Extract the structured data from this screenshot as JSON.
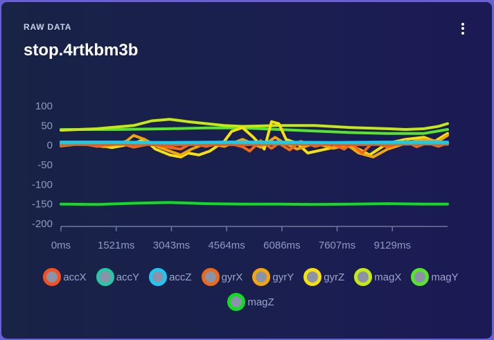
{
  "card": {
    "label": "RAW DATA",
    "title": "stop.4rtkbm3b",
    "menu_icon": "vertical-dots-icon"
  },
  "chart_data": {
    "type": "line",
    "ylim": [
      -200,
      100
    ],
    "xlim": [
      0,
      10650
    ],
    "yticks": [
      100,
      50,
      0,
      -50,
      -100,
      -150,
      -200
    ],
    "xticks": [
      0,
      1521,
      3043,
      4564,
      6086,
      7607,
      9129
    ],
    "xtick_labels": [
      "0ms",
      "1521ms",
      "3043ms",
      "4564ms",
      "6086ms",
      "7607ms",
      "9129ms"
    ],
    "grid": false,
    "legend_placement": "bottom",
    "series": [
      {
        "name": "accX",
        "color": "#f4511e",
        "x": [
          0,
          1000,
          2000,
          3000,
          4000,
          5000,
          6000,
          7000,
          8000,
          9000,
          10000,
          10650
        ],
        "y": [
          2,
          1,
          3,
          0,
          2,
          1,
          3,
          2,
          1,
          2,
          3,
          2
        ]
      },
      {
        "name": "accY",
        "color": "#26c6a6",
        "x": [
          0,
          1500,
          3000,
          4500,
          6000,
          7500,
          9000,
          10650
        ],
        "y": [
          5,
          6,
          5,
          6,
          5,
          6,
          5,
          5
        ]
      },
      {
        "name": "accZ",
        "color": "#1ec8f0",
        "x": [
          0,
          1500,
          3000,
          4500,
          6000,
          7500,
          9000,
          10650
        ],
        "y": [
          8,
          8,
          7,
          8,
          8,
          7,
          8,
          8
        ]
      },
      {
        "name": "gyrX",
        "color": "#ee6a1b",
        "x": [
          0,
          500,
          1000,
          1500,
          2000,
          2500,
          3000,
          3300,
          3600,
          4000,
          4500,
          5000,
          5200,
          5500,
          5800,
          6000,
          6300,
          6600,
          7000,
          7400,
          7800,
          8000,
          8300,
          8600,
          9000,
          9500,
          9800,
          10100,
          10400,
          10650
        ],
        "y": [
          -2,
          5,
          -3,
          8,
          -5,
          4,
          -6,
          -10,
          5,
          -3,
          8,
          -4,
          -15,
          12,
          -8,
          5,
          -12,
          10,
          -3,
          6,
          -10,
          4,
          -20,
          8,
          -5,
          10,
          -4,
          6,
          -3,
          5
        ]
      },
      {
        "name": "gyrY",
        "color": "#f2a50c",
        "x": [
          0,
          600,
          1200,
          1800,
          2000,
          2300,
          2700,
          3000,
          3300,
          3600,
          4000,
          4500,
          5000,
          5500,
          5900,
          6100,
          6500,
          7000,
          7500,
          7900,
          8200,
          8600,
          9000,
          9500,
          10000,
          10400,
          10650
        ],
        "y": [
          0,
          3,
          -4,
          10,
          25,
          15,
          -5,
          -15,
          -25,
          -10,
          5,
          -3,
          15,
          -5,
          20,
          8,
          -10,
          5,
          -8,
          0,
          -20,
          -30,
          -10,
          5,
          15,
          10,
          25
        ]
      },
      {
        "name": "gyrZ",
        "color": "#f5e10f",
        "x": [
          0,
          700,
          1400,
          2000,
          2300,
          2600,
          3000,
          3300,
          3500,
          3800,
          4100,
          4500,
          4700,
          5000,
          5300,
          5600,
          5800,
          6000,
          6200,
          6500,
          6800,
          7300,
          7800,
          8200,
          8500,
          9000,
          9500,
          10000,
          10300,
          10650
        ],
        "y": [
          -2,
          5,
          -6,
          4,
          15,
          -10,
          -25,
          -30,
          -20,
          -25,
          -15,
          10,
          35,
          45,
          20,
          -10,
          60,
          55,
          15,
          5,
          -20,
          -10,
          0,
          -10,
          -25,
          5,
          15,
          20,
          10,
          30
        ]
      },
      {
        "name": "magX",
        "color": "#c6e817",
        "x": [
          0,
          1000,
          2000,
          2500,
          3000,
          3500,
          4000,
          4500,
          5000,
          6000,
          7000,
          8000,
          9000,
          9500,
          10000,
          10400,
          10650
        ],
        "y": [
          38,
          42,
          50,
          62,
          66,
          60,
          55,
          50,
          48,
          50,
          50,
          45,
          42,
          40,
          42,
          48,
          55
        ]
      },
      {
        "name": "magY",
        "color": "#57e52b",
        "x": [
          0,
          1500,
          3000,
          4000,
          5000,
          6000,
          7000,
          8000,
          9000,
          10000,
          10650
        ],
        "y": [
          40,
          40,
          42,
          44,
          44,
          40,
          36,
          32,
          30,
          30,
          40
        ]
      },
      {
        "name": "magZ",
        "color": "#10dd22",
        "x": [
          0,
          1000,
          2000,
          3000,
          4000,
          5000,
          6000,
          7000,
          8000,
          9000,
          10000,
          10650
        ],
        "y": [
          -150,
          -151,
          -148,
          -146,
          -149,
          -150,
          -150,
          -151,
          -150,
          -149,
          -150,
          -150
        ]
      }
    ]
  }
}
